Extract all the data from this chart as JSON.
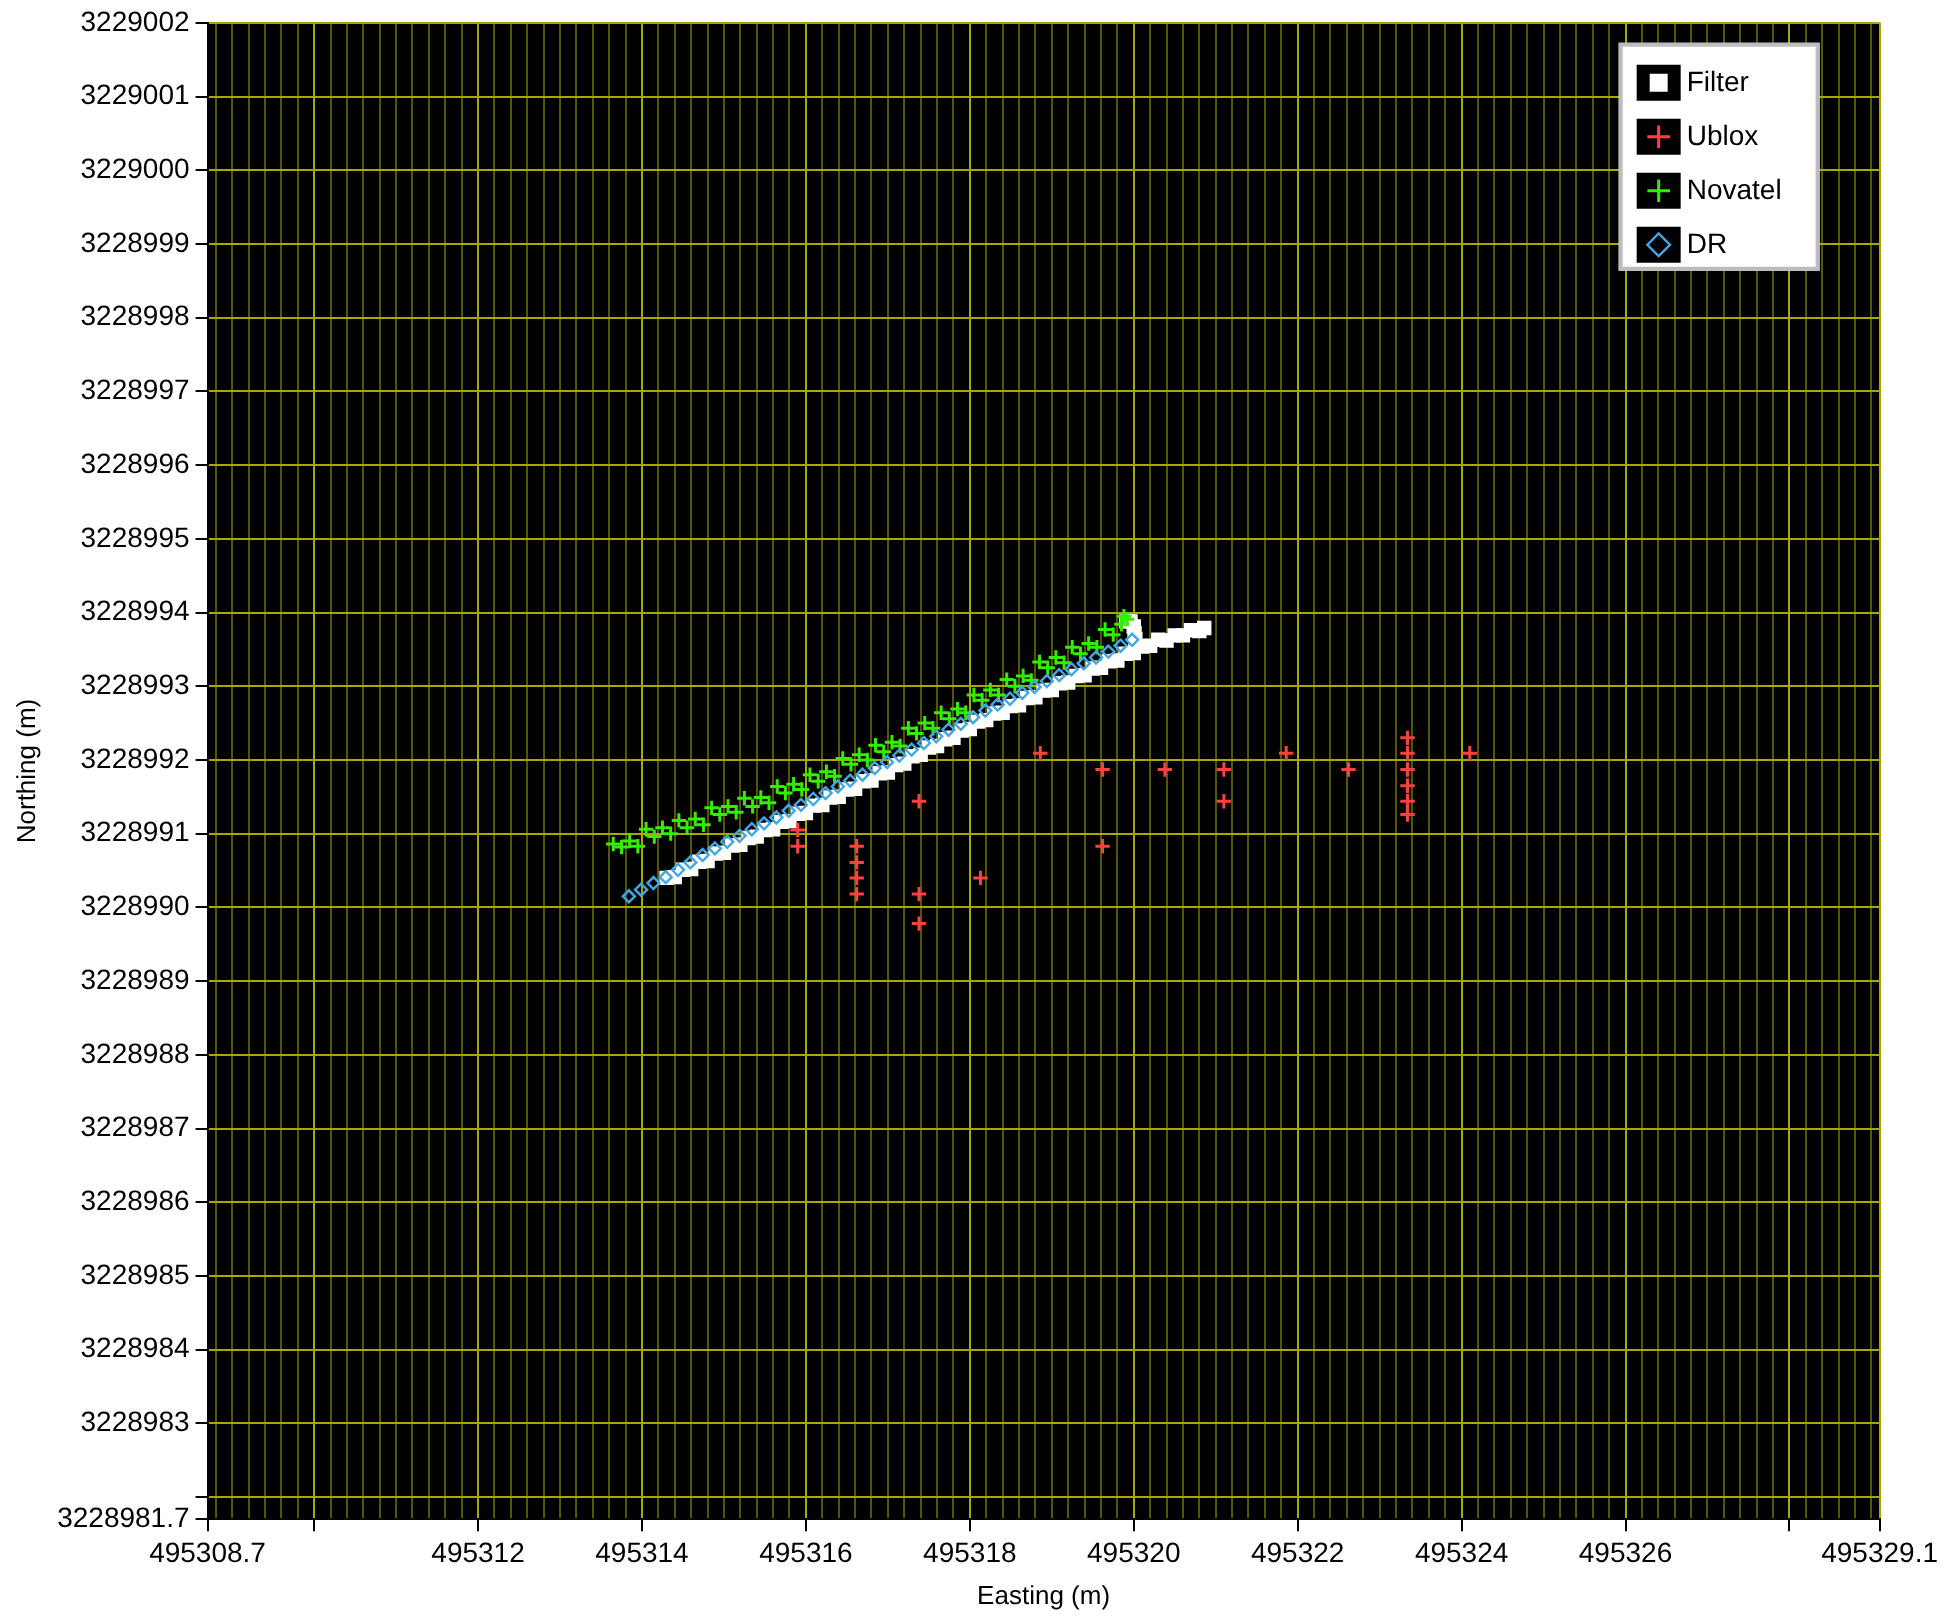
{
  "chart_data": {
    "type": "scatter",
    "xlabel": "Easting (m)",
    "ylabel": "Northing (m)",
    "xlim": [
      495308.7,
      495329.1
    ],
    "ylim": [
      3228981.7,
      3229002
    ],
    "xticks": [
      495308.7,
      {
        "value": 495308.8,
        "label": null
      },
      {
        "value": 495309,
        "label": null
      },
      {
        "value": 495309.2,
        "label": null
      },
      {
        "value": 495309.4,
        "label": null
      },
      {
        "value": 495309.6,
        "label": null
      },
      {
        "value": 495309.8,
        "label": null
      },
      {
        "value": 495310,
        "label": null
      },
      {
        "value": 495310.2,
        "label": null
      },
      {
        "value": 495310.4,
        "label": null
      },
      {
        "value": 495310.6,
        "label": null
      },
      {
        "value": 495310.8,
        "label": null
      },
      {
        "value": 495311,
        "label": null
      },
      {
        "value": 495311.2,
        "label": null
      },
      {
        "value": 495311.4,
        "label": null
      },
      {
        "value": 495311.6,
        "label": null
      },
      {
        "value": 495311.8,
        "label": null
      },
      495312,
      {
        "value": 495312.2,
        "label": null
      },
      {
        "value": 495312.4,
        "label": null
      },
      {
        "value": 495312.6,
        "label": null
      },
      {
        "value": 495312.8,
        "label": null
      },
      {
        "value": 495313,
        "label": null
      },
      {
        "value": 495313.2,
        "label": null
      },
      {
        "value": 495313.4,
        "label": null
      },
      {
        "value": 495313.6,
        "label": null
      },
      {
        "value": 495313.8,
        "label": null
      },
      495314,
      {
        "value": 495314.2,
        "label": null
      },
      {
        "value": 495314.4,
        "label": null
      },
      {
        "value": 495314.6,
        "label": null
      },
      {
        "value": 495314.8,
        "label": null
      },
      {
        "value": 495315,
        "label": null
      },
      {
        "value": 495315.2,
        "label": null
      },
      {
        "value": 495315.4,
        "label": null
      },
      {
        "value": 495315.6,
        "label": null
      },
      {
        "value": 495315.8,
        "label": null
      },
      495316,
      {
        "value": 495316.2,
        "label": null
      },
      {
        "value": 495316.4,
        "label": null
      },
      {
        "value": 495316.6,
        "label": null
      },
      {
        "value": 495316.8,
        "label": null
      },
      {
        "value": 495317,
        "label": null
      },
      {
        "value": 495317.2,
        "label": null
      },
      {
        "value": 495317.4,
        "label": null
      },
      {
        "value": 495317.6,
        "label": null
      },
      {
        "value": 495317.8,
        "label": null
      },
      495318,
      {
        "value": 495318.2,
        "label": null
      },
      {
        "value": 495318.4,
        "label": null
      },
      {
        "value": 495318.6,
        "label": null
      },
      {
        "value": 495318.8,
        "label": null
      },
      {
        "value": 495319,
        "label": null
      },
      {
        "value": 495319.2,
        "label": null
      },
      {
        "value": 495319.4,
        "label": null
      },
      {
        "value": 495319.6,
        "label": null
      },
      {
        "value": 495319.8,
        "label": null
      },
      495320,
      {
        "value": 495320.2,
        "label": null
      },
      {
        "value": 495320.4,
        "label": null
      },
      {
        "value": 495320.6,
        "label": null
      },
      {
        "value": 495320.8,
        "label": null
      },
      {
        "value": 495321,
        "label": null
      },
      {
        "value": 495321.2,
        "label": null
      },
      {
        "value": 495321.4,
        "label": null
      },
      {
        "value": 495321.6,
        "label": null
      },
      {
        "value": 495321.8,
        "label": null
      },
      495322,
      {
        "value": 495322.2,
        "label": null
      },
      {
        "value": 495322.4,
        "label": null
      },
      {
        "value": 495322.6,
        "label": null
      },
      {
        "value": 495322.8,
        "label": null
      },
      {
        "value": 495323,
        "label": null
      },
      {
        "value": 495323.2,
        "label": null
      },
      {
        "value": 495323.4,
        "label": null
      },
      {
        "value": 495323.6,
        "label": null
      },
      {
        "value": 495323.8,
        "label": null
      },
      495324,
      {
        "value": 495324.2,
        "label": null
      },
      {
        "value": 495324.4,
        "label": null
      },
      {
        "value": 495324.6,
        "label": null
      },
      {
        "value": 495324.8,
        "label": null
      },
      {
        "value": 495325,
        "label": null
      },
      {
        "value": 495325.2,
        "label": null
      },
      {
        "value": 495325.4,
        "label": null
      },
      {
        "value": 495325.6,
        "label": null
      },
      {
        "value": 495325.8,
        "label": null
      },
      495326,
      {
        "value": 495326.2,
        "label": null
      },
      {
        "value": 495326.4,
        "label": null
      },
      {
        "value": 495326.6,
        "label": null
      },
      {
        "value": 495326.8,
        "label": null
      },
      {
        "value": 495327,
        "label": null
      },
      {
        "value": 495327.2,
        "label": null
      },
      {
        "value": 495327.4,
        "label": null
      },
      {
        "value": 495327.6,
        "label": null
      },
      {
        "value": 495327.8,
        "label": null
      },
      {
        "value": 495328,
        "label": null
      },
      {
        "value": 495328.2,
        "label": null
      },
      {
        "value": 495328.4,
        "label": null
      },
      {
        "value": 495328.6,
        "label": null
      },
      {
        "value": 495328.8,
        "label": null
      },
      {
        "value": 495329,
        "label": null
      },
      495329.1
    ],
    "yticks": [
      3228981.7,
      {
        "value": 3228982,
        "label": null
      },
      3228983,
      3228984,
      3228985,
      3228986,
      3228987,
      3228988,
      3228989,
      3228990,
      3228991,
      3228992,
      3228993,
      3228994,
      3228995,
      3228996,
      3228997,
      3228998,
      3228999,
      3229000,
      3229001,
      3229002
    ],
    "grid": true,
    "legend": "top right",
    "series": [
      {
        "name": "Filter",
        "color": "#ffffff",
        "marker": "square",
        "x": [
          495314.3,
          495314.4,
          495314.5,
          495314.6,
          495314.7,
          495314.8,
          495314.9,
          495315,
          495315.1,
          495315.2,
          495315.3,
          495315.4,
          495315.5,
          495315.6,
          495315.7,
          495315.8,
          495315.9,
          495316,
          495316.1,
          495316.2,
          495316.3,
          495316.4,
          495316.5,
          495316.6,
          495316.7,
          495316.8,
          495316.9,
          495317,
          495317.1,
          495317.2,
          495317.3,
          495317.4,
          495317.5,
          495317.6,
          495317.7,
          495317.8,
          495317.9,
          495318,
          495318.1,
          495318.2,
          495318.3,
          495318.4,
          495318.5,
          495318.6,
          495318.7,
          495318.8,
          495318.9,
          495319,
          495319.1,
          495319.2,
          495319.3,
          495319.4,
          495319.5,
          495319.6,
          495319.7,
          495319.8,
          495319.9,
          495319.91,
          495319.96,
          495320,
          495320.01,
          495320.02,
          495320,
          495320.1,
          495320.2,
          495320.3,
          495320.4,
          495320.5,
          495320.6,
          495320.7,
          495320.8,
          495320.86
        ],
        "values": [
          3228990.4,
          3228990.41,
          3228990.51,
          3228990.52,
          3228990.62,
          3228990.63,
          3228990.73,
          3228990.74,
          3228990.84,
          3228990.85,
          3228990.94,
          3228990.96,
          3228991.05,
          3228991.06,
          3228991.16,
          3228991.17,
          3228991.27,
          3228991.28,
          3228991.38,
          3228991.39,
          3228991.49,
          3228991.5,
          3228991.6,
          3228991.61,
          3228991.71,
          3228991.72,
          3228991.82,
          3228991.83,
          3228991.93,
          3228991.95,
          3228992.05,
          3228992.07,
          3228992.17,
          3228992.19,
          3228992.28,
          3228992.3,
          3228992.4,
          3228992.42,
          3228992.52,
          3228992.54,
          3228992.63,
          3228992.64,
          3228992.73,
          3228992.74,
          3228992.84,
          3228992.85,
          3228992.94,
          3228992.95,
          3228993.04,
          3228993.05,
          3228993.14,
          3228993.15,
          3228993.24,
          3228993.25,
          3228993.34,
          3228993.35,
          3228993.44,
          3228993.88,
          3228993.88,
          3228993.81,
          3228993.72,
          3228993.64,
          3228993.45,
          3228993.54,
          3228993.55,
          3228993.63,
          3228993.62,
          3228993.69,
          3228993.69,
          3228993.76,
          3228993.75,
          3228993.79
        ]
      },
      {
        "name": "Ublox",
        "color": "#ff4040",
        "marker": "cross",
        "x": [
          495315.9,
          495315.9,
          495316.62,
          495316.62,
          495316.62,
          495316.62,
          495317.38,
          495317.38,
          495317.38,
          495318.13,
          495318.86,
          495319.62,
          495319.62,
          495320.38,
          495321.1,
          495321.1,
          495321.86,
          495322.62,
          495323.34,
          495323.34,
          495323.34,
          495323.34,
          495323.34,
          495323.34,
          495324.1
        ],
        "values": [
          3228991.05,
          3228990.83,
          3228990.83,
          3228990.61,
          3228990.4,
          3228990.18,
          3228991.44,
          3228990.18,
          3228989.78,
          3228990.4,
          3228992.09,
          3228991.87,
          3228990.83,
          3228991.87,
          3228991.87,
          3228991.44,
          3228992.09,
          3228991.87,
          3228992.3,
          3228992.09,
          3228991.87,
          3228991.65,
          3228991.44,
          3228991.26,
          3228992.09
        ]
      },
      {
        "name": "Novatel",
        "color": "#33ee00",
        "marker": "cross",
        "x": [
          495313.65,
          495313.75,
          495313.85,
          495313.95,
          495314.05,
          495314.15,
          495314.25,
          495314.35,
          495314.45,
          495314.55,
          495314.65,
          495314.75,
          495314.85,
          495314.95,
          495315.05,
          495315.15,
          495315.25,
          495315.35,
          495315.45,
          495315.55,
          495315.65,
          495315.75,
          495315.85,
          495315.95,
          495316.05,
          495316.15,
          495316.25,
          495316.35,
          495316.45,
          495316.55,
          495316.65,
          495316.75,
          495316.85,
          495316.95,
          495317.05,
          495317.15,
          495317.25,
          495317.35,
          495317.45,
          495317.55,
          495317.65,
          495317.75,
          495317.85,
          495317.95,
          495318.05,
          495318.15,
          495318.25,
          495318.35,
          495318.45,
          495318.55,
          495318.65,
          495318.75,
          495318.85,
          495318.95,
          495319.05,
          495319.15,
          495319.25,
          495319.35,
          495319.45,
          495319.55,
          495319.65,
          495319.75,
          495319.85,
          495319.92,
          495319.88
        ],
        "values": [
          3228990.86,
          3228990.82,
          3228990.9,
          3228990.83,
          3228991.06,
          3228990.96,
          3228991.08,
          3228991,
          3228991.18,
          3228991.08,
          3228991.2,
          3228991.12,
          3228991.35,
          3228991.26,
          3228991.37,
          3228991.29,
          3228991.48,
          3228991.37,
          3228991.49,
          3228991.42,
          3228991.64,
          3228991.55,
          3228991.67,
          3228991.6,
          3228991.8,
          3228991.71,
          3228991.84,
          3228991.78,
          3228992.02,
          3228991.94,
          3228992.07,
          3228992,
          3228992.2,
          3228992.11,
          3228992.24,
          3228992.19,
          3228992.43,
          3228992.36,
          3228992.5,
          3228992.43,
          3228992.64,
          3228992.56,
          3228992.69,
          3228992.64,
          3228992.88,
          3228992.81,
          3228992.95,
          3228992.88,
          3228993.09,
          3228993,
          3228993.14,
          3228993.08,
          3228993.33,
          3228993.25,
          3228993.39,
          3228993.32,
          3228993.53,
          3228993.44,
          3228993.58,
          3228993.53,
          3228993.77,
          3228993.7,
          3228993.84,
          3228993.91,
          3228993.95
        ]
      },
      {
        "name": "DR",
        "color": "#40a8e8",
        "marker": "diamond",
        "x": [
          495313.84,
          495313.99,
          495314.14,
          495314.29,
          495314.44,
          495314.59,
          495314.74,
          495314.89,
          495315.04,
          495315.19,
          495315.34,
          495315.49,
          495315.64,
          495315.79,
          495315.94,
          495316.09,
          495316.24,
          495316.39,
          495316.54,
          495316.69,
          495316.84,
          495316.99,
          495317.14,
          495317.29,
          495317.44,
          495317.59,
          495317.74,
          495317.89,
          495318.04,
          495318.19,
          495318.34,
          495318.49,
          495318.64,
          495318.79,
          495318.94,
          495319.09,
          495319.24,
          495319.39,
          495319.54,
          495319.69,
          495319.84,
          495319.98
        ],
        "values": [
          3228990.15,
          3228990.24,
          3228990.33,
          3228990.41,
          3228990.51,
          3228990.61,
          3228990.71,
          3228990.8,
          3228990.89,
          3228990.97,
          3228991.06,
          3228991.14,
          3228991.22,
          3228991.31,
          3228991.39,
          3228991.47,
          3228991.55,
          3228991.64,
          3228991.72,
          3228991.8,
          3228991.89,
          3228991.97,
          3228992.06,
          3228992.14,
          3228992.23,
          3228992.32,
          3228992.41,
          3228992.49,
          3228992.58,
          3228992.67,
          3228992.75,
          3228992.83,
          3228992.91,
          3228992.99,
          3228993.07,
          3228993.15,
          3228993.23,
          3228993.31,
          3228993.39,
          3228993.47,
          3228993.55,
          3228993.63
        ]
      }
    ]
  }
}
